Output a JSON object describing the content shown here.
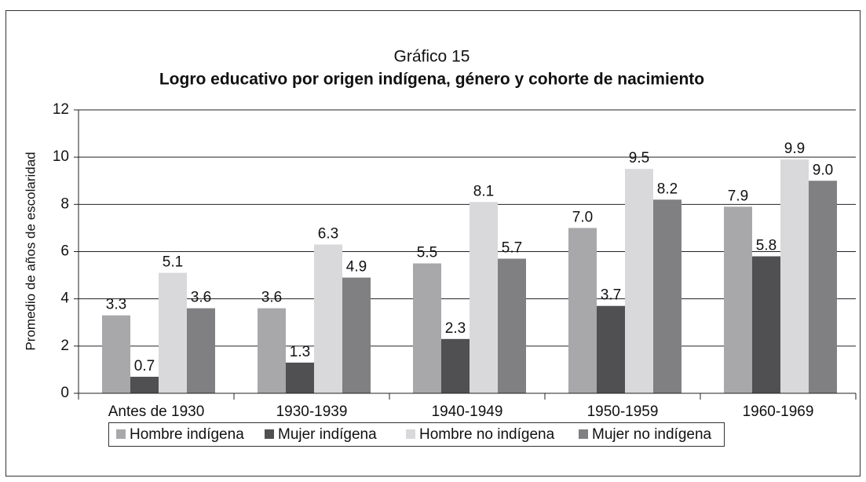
{
  "chart_data": {
    "type": "bar",
    "title": "Gráfico 15",
    "subtitle": "Logro educativo por origen indígena, género y cohorte de nacimiento",
    "y_label": "Promedio de años de escolaridad",
    "categories": [
      "Antes de 1930",
      "1930-1939",
      "1940-1949",
      "1950-1959",
      "1960-1969"
    ],
    "series": [
      {
        "name": "Hombre indígena",
        "color": "#a8a8ab",
        "values": [
          3.3,
          3.6,
          5.5,
          7.0,
          7.9
        ],
        "value_labels": [
          "3.3",
          "3.6",
          "5.5",
          "7.0",
          "7.9"
        ]
      },
      {
        "name": "Mujer indígena",
        "color": "#505052",
        "values": [
          0.7,
          1.3,
          2.3,
          3.7,
          5.8
        ],
        "value_labels": [
          "0.7",
          "1.3",
          "2.3",
          "3.7",
          "5.8"
        ]
      },
      {
        "name": "Hombre no indígena",
        "color": "#d9d9db",
        "values": [
          5.1,
          6.3,
          8.1,
          9.5,
          9.9
        ],
        "value_labels": [
          "5.1",
          "6.3",
          "8.1",
          "9.5",
          "9.9"
        ]
      },
      {
        "name": "Mujer no indígena",
        "color": "#808083",
        "values": [
          3.6,
          4.9,
          5.7,
          8.2,
          9.0
        ],
        "value_labels": [
          "3.6",
          "4.9",
          "5.7",
          "8.2",
          "9.0"
        ]
      }
    ],
    "ylim": [
      0,
      12
    ],
    "yticks": [
      0,
      2,
      4,
      6,
      8,
      10,
      12
    ],
    "grid": true,
    "legend": "bottom"
  }
}
